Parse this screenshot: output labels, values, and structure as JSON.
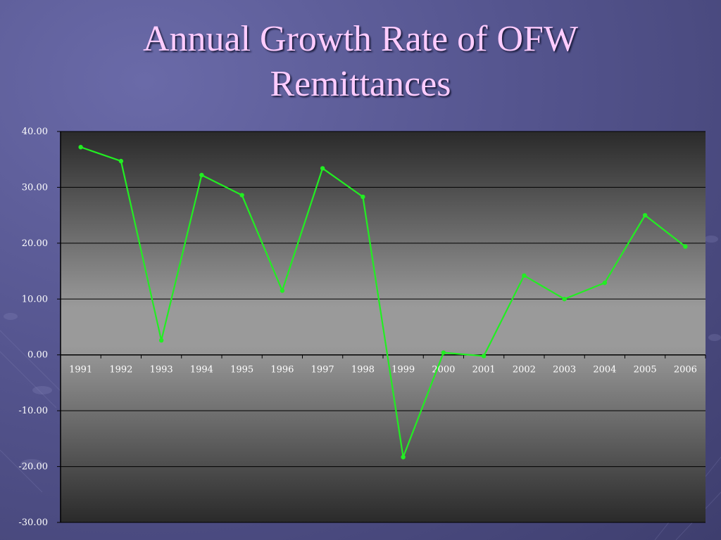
{
  "title_line1": "Annual Growth Rate of OFW",
  "title_line2": "Remittances",
  "colors": {
    "line": "#22ee22",
    "title": "#ffccff",
    "background": "#55558f"
  },
  "chart_data": {
    "type": "line",
    "title": "Annual Growth Rate of OFW Remittances",
    "xlabel": "",
    "ylabel": "",
    "categories": [
      "1991",
      "1992",
      "1993",
      "1994",
      "1995",
      "1996",
      "1997",
      "1998",
      "1999",
      "2000",
      "2001",
      "2002",
      "2003",
      "2004",
      "2005",
      "2006"
    ],
    "values": [
      37.2,
      34.7,
      2.6,
      32.2,
      28.6,
      11.5,
      33.4,
      28.3,
      -18.3,
      0.4,
      -0.2,
      14.2,
      10.0,
      12.9,
      25.0,
      19.4
    ],
    "ylim": [
      -30,
      40
    ],
    "yticks": [
      "40.00",
      "30.00",
      "20.00",
      "10.00",
      "0.00",
      "-10.00",
      "-20.00",
      "-30.00"
    ],
    "grid": true,
    "legend": "none"
  }
}
